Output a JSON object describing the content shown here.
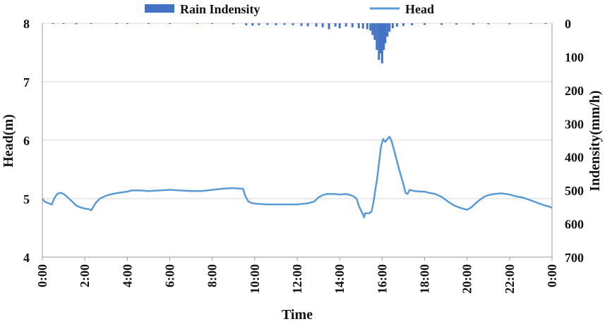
{
  "chart_data": {
    "type": "line+bar",
    "title": "",
    "xlabel": "Time",
    "ylabel_left": "Head(m)",
    "ylabel_right": "Indensity(mm/h)",
    "x_ticks": [
      "0:00",
      "2:00",
      "4:00",
      "6:00",
      "8:00",
      "10:00",
      "12:00",
      "14:00",
      "16:00",
      "18:00",
      "20:00",
      "22:00",
      "0:00"
    ],
    "x_tick_hours": [
      0,
      2,
      4,
      6,
      8,
      10,
      12,
      14,
      16,
      18,
      20,
      22,
      24
    ],
    "xlim": [
      0,
      24
    ],
    "ylim_left": [
      4,
      8
    ],
    "y_left_ticks": [
      4,
      5,
      6,
      7,
      8
    ],
    "ylim_right": [
      700,
      0
    ],
    "y_right_ticks": [
      0,
      100,
      200,
      300,
      400,
      500,
      600,
      700
    ],
    "grid": true,
    "legend_position": "top",
    "colors": {
      "rain": "#4472C4",
      "head": "#5B9BD5",
      "grid": "#d7d7d7"
    },
    "series": [
      {
        "name": "Rain Indensity",
        "type": "bar",
        "axis": "right",
        "points": [
          [
            0.5,
            2
          ],
          [
            1.0,
            2
          ],
          [
            1.6,
            3
          ],
          [
            2.3,
            2
          ],
          [
            3.5,
            2
          ],
          [
            4.0,
            2
          ],
          [
            5.0,
            2
          ],
          [
            6.0,
            2
          ],
          [
            7.3,
            2
          ],
          [
            8.0,
            2
          ],
          [
            9.0,
            3
          ],
          [
            9.6,
            6
          ],
          [
            9.9,
            7
          ],
          [
            10.2,
            6
          ],
          [
            10.6,
            5
          ],
          [
            11.0,
            6
          ],
          [
            11.4,
            5
          ],
          [
            11.8,
            6
          ],
          [
            12.2,
            8
          ],
          [
            12.5,
            9
          ],
          [
            12.9,
            10
          ],
          [
            13.2,
            12
          ],
          [
            13.5,
            18
          ],
          [
            13.8,
            10
          ],
          [
            14.0,
            15
          ],
          [
            14.3,
            10
          ],
          [
            14.6,
            12
          ],
          [
            14.9,
            15
          ],
          [
            15.1,
            16
          ],
          [
            15.3,
            18
          ],
          [
            15.45,
            22
          ],
          [
            15.55,
            35
          ],
          [
            15.65,
            50
          ],
          [
            15.75,
            80
          ],
          [
            15.85,
            110
          ],
          [
            15.92,
            90
          ],
          [
            16.0,
            120
          ],
          [
            16.08,
            80
          ],
          [
            16.15,
            60
          ],
          [
            16.25,
            40
          ],
          [
            16.35,
            25
          ],
          [
            16.5,
            15
          ],
          [
            16.7,
            10
          ],
          [
            17.0,
            8
          ],
          [
            17.4,
            6
          ],
          [
            18.0,
            5
          ],
          [
            18.8,
            5
          ],
          [
            19.5,
            4
          ],
          [
            20.3,
            4
          ],
          [
            21.0,
            3
          ],
          [
            22.0,
            3
          ],
          [
            23.0,
            2
          ],
          [
            23.7,
            2
          ]
        ]
      },
      {
        "name": "Head",
        "type": "line",
        "axis": "left",
        "points": [
          [
            0.0,
            5.0
          ],
          [
            0.1,
            4.95
          ],
          [
            0.3,
            4.92
          ],
          [
            0.45,
            4.9
          ],
          [
            0.55,
            5.0
          ],
          [
            0.7,
            5.08
          ],
          [
            0.85,
            5.1
          ],
          [
            1.0,
            5.08
          ],
          [
            1.2,
            5.02
          ],
          [
            1.4,
            4.95
          ],
          [
            1.6,
            4.88
          ],
          [
            1.8,
            4.85
          ],
          [
            2.0,
            4.83
          ],
          [
            2.2,
            4.82
          ],
          [
            2.3,
            4.8
          ],
          [
            2.5,
            4.92
          ],
          [
            2.7,
            5.0
          ],
          [
            3.0,
            5.05
          ],
          [
            3.3,
            5.08
          ],
          [
            3.6,
            5.1
          ],
          [
            4.0,
            5.12
          ],
          [
            4.2,
            5.14
          ],
          [
            4.6,
            5.14
          ],
          [
            5.0,
            5.13
          ],
          [
            5.5,
            5.14
          ],
          [
            6.0,
            5.15
          ],
          [
            6.5,
            5.14
          ],
          [
            7.0,
            5.13
          ],
          [
            7.5,
            5.13
          ],
          [
            8.0,
            5.15
          ],
          [
            8.5,
            5.17
          ],
          [
            9.0,
            5.18
          ],
          [
            9.3,
            5.17
          ],
          [
            9.45,
            5.17
          ],
          [
            9.55,
            5.05
          ],
          [
            9.7,
            4.95
          ],
          [
            9.9,
            4.92
          ],
          [
            10.2,
            4.91
          ],
          [
            10.6,
            4.9
          ],
          [
            11.0,
            4.9
          ],
          [
            11.5,
            4.9
          ],
          [
            12.0,
            4.9
          ],
          [
            12.5,
            4.92
          ],
          [
            12.8,
            4.95
          ],
          [
            13.0,
            5.02
          ],
          [
            13.2,
            5.06
          ],
          [
            13.4,
            5.08
          ],
          [
            13.7,
            5.08
          ],
          [
            14.0,
            5.07
          ],
          [
            14.3,
            5.08
          ],
          [
            14.6,
            5.05
          ],
          [
            14.8,
            5.0
          ],
          [
            14.9,
            4.88
          ],
          [
            15.0,
            4.8
          ],
          [
            15.1,
            4.73
          ],
          [
            15.15,
            4.68
          ],
          [
            15.2,
            4.75
          ],
          [
            15.4,
            4.75
          ],
          [
            15.5,
            4.78
          ],
          [
            15.6,
            4.95
          ],
          [
            15.7,
            5.2
          ],
          [
            15.75,
            5.3
          ],
          [
            15.85,
            5.6
          ],
          [
            15.95,
            5.9
          ],
          [
            16.05,
            6.02
          ],
          [
            16.15,
            5.97
          ],
          [
            16.25,
            6.02
          ],
          [
            16.35,
            6.06
          ],
          [
            16.45,
            5.98
          ],
          [
            16.6,
            5.78
          ],
          [
            16.8,
            5.5
          ],
          [
            17.0,
            5.25
          ],
          [
            17.1,
            5.1
          ],
          [
            17.2,
            5.08
          ],
          [
            17.3,
            5.15
          ],
          [
            17.5,
            5.13
          ],
          [
            17.8,
            5.12
          ],
          [
            18.0,
            5.12
          ],
          [
            18.2,
            5.1
          ],
          [
            18.5,
            5.08
          ],
          [
            18.8,
            5.03
          ],
          [
            19.1,
            4.95
          ],
          [
            19.4,
            4.88
          ],
          [
            19.7,
            4.84
          ],
          [
            20.0,
            4.81
          ],
          [
            20.2,
            4.85
          ],
          [
            20.4,
            4.92
          ],
          [
            20.6,
            4.98
          ],
          [
            20.8,
            5.03
          ],
          [
            21.0,
            5.06
          ],
          [
            21.3,
            5.08
          ],
          [
            21.6,
            5.09
          ],
          [
            22.0,
            5.07
          ],
          [
            22.3,
            5.04
          ],
          [
            22.6,
            5.02
          ],
          [
            23.0,
            4.97
          ],
          [
            23.3,
            4.93
          ],
          [
            23.6,
            4.89
          ],
          [
            23.9,
            4.86
          ],
          [
            24.0,
            4.84
          ]
        ]
      }
    ]
  }
}
